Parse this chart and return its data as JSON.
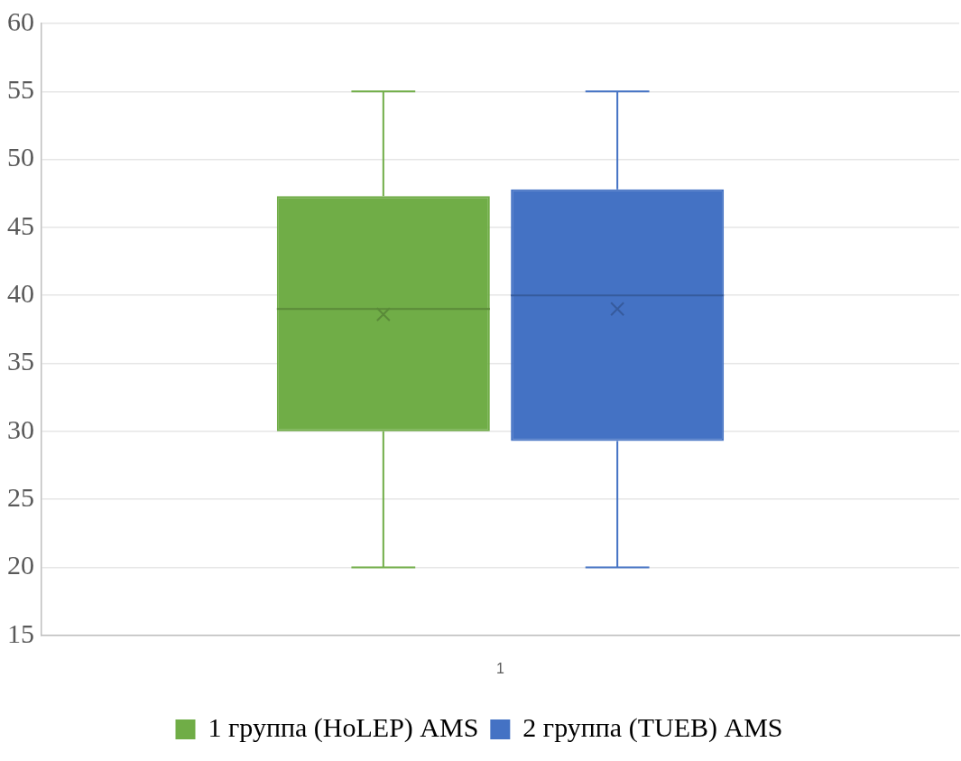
{
  "chart_data": {
    "type": "box",
    "categories": [
      "1"
    ],
    "ylim": [
      15,
      60
    ],
    "yticks": [
      15,
      20,
      25,
      30,
      35,
      40,
      45,
      50,
      55,
      60
    ],
    "grid": "y",
    "legend": "bottom",
    "series": [
      {
        "name": "1 группа (HoLEP) AMS",
        "color": "#70ad47",
        "boxes": [
          {
            "low": 20,
            "q1": 30,
            "median": 39,
            "q3": 47.3,
            "high": 55,
            "mean": 38.6
          }
        ]
      },
      {
        "name": "2 группа (TUEB) AMS",
        "color": "#4472c4",
        "boxes": [
          {
            "low": 20,
            "q1": 29.3,
            "median": 40,
            "q3": 47.8,
            "high": 55,
            "mean": 39
          }
        ]
      }
    ]
  }
}
